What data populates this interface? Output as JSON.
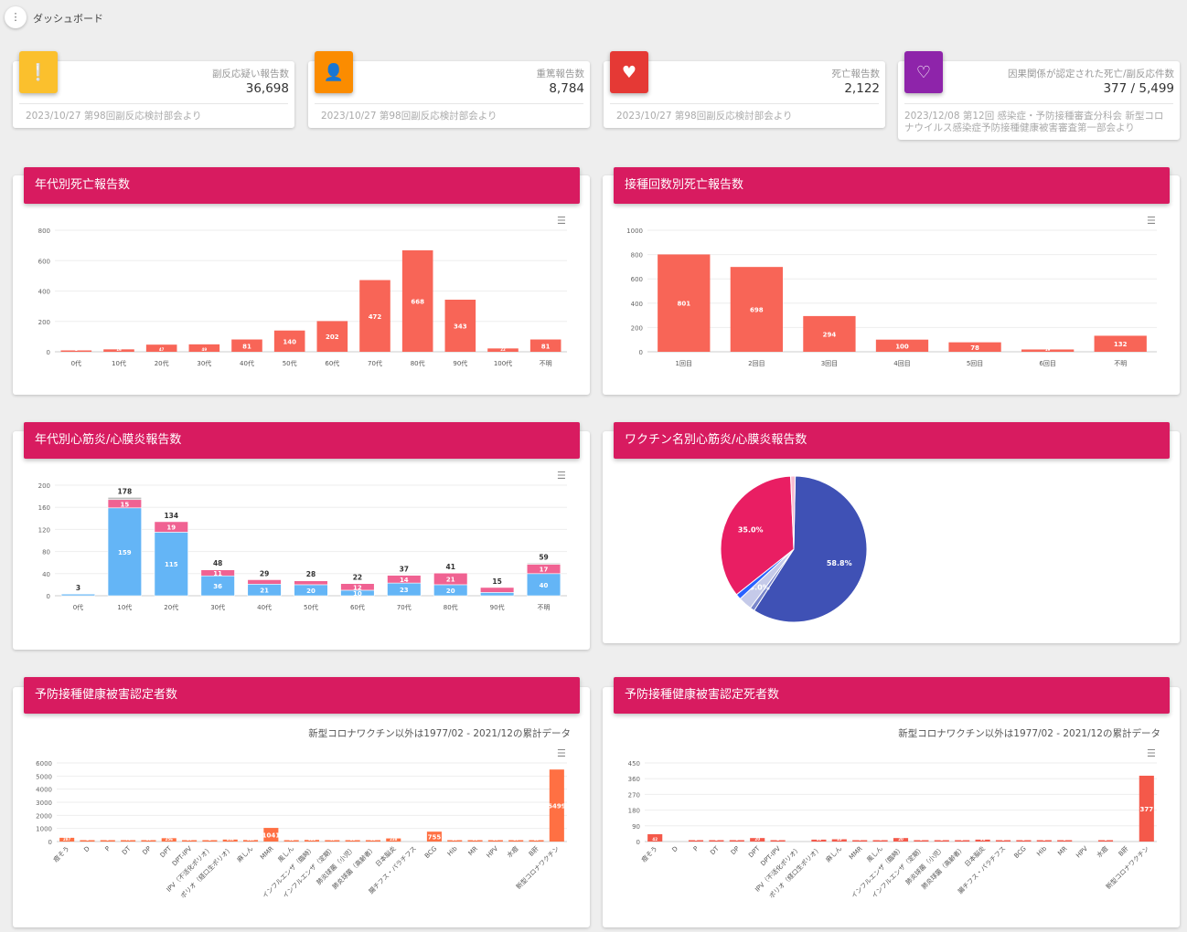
{
  "header": {
    "menu_icon": "more-vert-icon",
    "title": "ダッシュボード"
  },
  "stats": [
    {
      "icon": "feedback-icon",
      "color": "#fbc02d",
      "label": "副反応疑い報告数",
      "value": "36,698",
      "note": "2023/10/27 第98回副反応検討部会より"
    },
    {
      "icon": "person-alert-icon",
      "color": "#fb8c00",
      "label": "重篤報告数",
      "value": "8,784",
      "note": "2023/10/27 第98回副反応検討部会より"
    },
    {
      "icon": "heart-broken-icon",
      "color": "#e53935",
      "label": "死亡報告数",
      "value": "2,122",
      "note": "2023/10/27 第98回副反応検討部会より"
    },
    {
      "icon": "heart-off-icon",
      "color": "#8e24aa",
      "label": "因果関係が認定された死亡/副反応件数",
      "value": "377 / 5,499",
      "note": "2023/12/08 第12回 感染症・予防接種審査分科会 新型コロナウイルス感染症予防接種健康被害審査第一部会より"
    }
  ],
  "panels": [
    {
      "title": "年代別死亡報告数"
    },
    {
      "title": "接種回数別死亡報告数"
    },
    {
      "title": "年代別心筋炎/心膜炎報告数"
    },
    {
      "title": "ワクチン名別心筋炎/心膜炎報告数"
    },
    {
      "title": "予防接種健康被害認定者数",
      "subtitle": "新型コロナワクチン以外は1977/02 - 2021/12の累計データ"
    },
    {
      "title": "予防接種健康被害認定死者数",
      "subtitle": "新型コロナワクチン以外は1977/02 - 2021/12の累計データ"
    }
  ],
  "chart_data": [
    {
      "type": "bar",
      "color": "#f86557",
      "categories": [
        "0代",
        "10代",
        "20代",
        "30代",
        "40代",
        "50代",
        "60代",
        "70代",
        "80代",
        "90代",
        "100代",
        "不明"
      ],
      "values": [
        1,
        16,
        47,
        49,
        81,
        140,
        202,
        472,
        668,
        343,
        22,
        81
      ],
      "ylim": [
        0,
        800
      ],
      "yticks": [
        "0",
        "200",
        "400",
        "600",
        "800"
      ]
    },
    {
      "type": "bar",
      "color": "#f86557",
      "categories": [
        "1回目",
        "2回目",
        "3回目",
        "4回目",
        "5回目",
        "6回目",
        "不明"
      ],
      "values": [
        801,
        698,
        294,
        100,
        78,
        19,
        132
      ],
      "ylim": [
        0,
        1000
      ],
      "yticks": [
        "0",
        "200",
        "400",
        "600",
        "800",
        "1000"
      ]
    },
    {
      "type": "bar",
      "stacked": true,
      "categories": [
        "0代",
        "10代",
        "20代",
        "30代",
        "40代",
        "50代",
        "60代",
        "70代",
        "80代",
        "90代",
        "不明"
      ],
      "series": [
        {
          "color": "#64b5f6",
          "values": [
            3,
            159,
            115,
            36,
            21,
            20,
            10,
            23,
            20,
            6,
            40
          ]
        },
        {
          "color": "#f06292",
          "values": [
            0,
            15,
            19,
            11,
            8,
            7,
            12,
            14,
            21,
            9,
            17
          ]
        },
        {
          "color": "#bdbdbd",
          "values": [
            0,
            4,
            0,
            1,
            0,
            1,
            0,
            0,
            0,
            0,
            2
          ]
        }
      ],
      "totals": [
        3,
        178,
        134,
        48,
        29,
        28,
        22,
        37,
        41,
        15,
        59
      ],
      "ylim": [
        0,
        200
      ],
      "yticks": [
        "0",
        "40",
        "80",
        "120",
        "160",
        "200"
      ]
    },
    {
      "type": "pie",
      "values": [
        58.8,
        1.0,
        3.0,
        1.2,
        35.0,
        1.0
      ],
      "labels": [
        "58.8%",
        "",
        "3.0%",
        "",
        "35.0%",
        ""
      ],
      "colors": [
        "#3f51b5",
        "#7986cb",
        "#c5cae9",
        "#2962ff",
        "#e91e63",
        "#f8bbd0"
      ]
    },
    {
      "type": "bar",
      "color": "#ff7043",
      "categories": [
        "痘そう",
        "D",
        "P",
        "DT",
        "DP",
        "DPT",
        "DPT-IPV",
        "IPV（不活化ポリオ）",
        "ポリオ（経口生ポリオ）",
        "麻しん",
        "MMR",
        "風しん",
        "インフルエンザ（臨時）",
        "インフルエンザ（定期）",
        "肺炎球菌（小児）",
        "肺炎球菌（高齢者）",
        "日本脳炎",
        "腸チフス・パラチフス",
        "BCG",
        "Hib",
        "MR",
        "HPV",
        "水痘",
        "B肝",
        "新型コロナワクチン"
      ],
      "values": [
        287,
        1,
        3,
        70,
        60,
        256,
        30,
        2,
        152,
        115,
        1041,
        62,
        122,
        40,
        38,
        55,
        238,
        0,
        755,
        30,
        56,
        30,
        20,
        25,
        5499
      ],
      "ylim": [
        0,
        6000
      ],
      "yticks": [
        "0",
        "1000",
        "2000",
        "3000",
        "4000",
        "5000",
        "6000"
      ]
    },
    {
      "type": "bar",
      "color": "#f4594a",
      "categories": [
        "痘そう",
        "D",
        "P",
        "DT",
        "DP",
        "DPT",
        "DPT-IPV",
        "IPV（不活化ポリオ）",
        "ポリオ（経口生ポリオ）",
        "麻しん",
        "MMR",
        "風しん",
        "インフルエンザ（臨時）",
        "インフルエンザ（定期）",
        "肺炎球菌（小児）",
        "肺炎球菌（高齢者）",
        "日本脳炎",
        "腸チフス・パラチフス",
        "BCG",
        "Hib",
        "MR",
        "HPV",
        "水痘",
        "B肝",
        "新型コロナワクチン"
      ],
      "values": [
        42,
        0,
        1,
        2,
        8,
        20,
        2,
        0,
        11,
        13,
        4,
        4,
        20,
        5,
        2,
        3,
        11,
        2,
        3,
        2,
        3,
        0,
        1,
        0,
        377
      ],
      "ylim": [
        0,
        450
      ],
      "yticks": [
        "0",
        "90",
        "180",
        "270",
        "360",
        "450"
      ]
    }
  ]
}
